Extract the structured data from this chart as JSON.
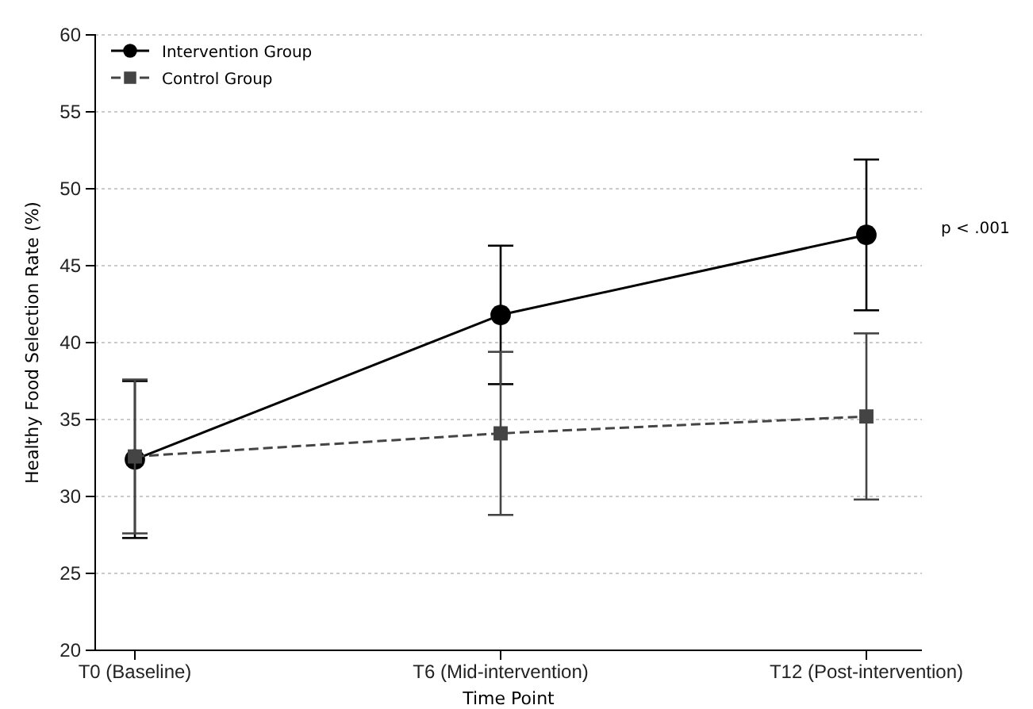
{
  "chart_data": {
    "type": "line",
    "xlabel": "Time Point",
    "ylabel": "Healthy Food Selection Rate (%)",
    "categories": [
      "T0 (Baseline)",
      "T6 (Mid-intervention)",
      "T12 (Post-intervention)"
    ],
    "series": [
      {
        "name": "Intervention Group",
        "color": "#000000",
        "marker": "circle",
        "line_style": "solid",
        "values": [
          32.4,
          41.8,
          47.0
        ],
        "errors": [
          5.1,
          4.5,
          4.9
        ]
      },
      {
        "name": "Control Group",
        "color": "#444444",
        "marker": "square",
        "line_style": "dashed",
        "values": [
          32.6,
          34.1,
          35.2
        ],
        "errors": [
          5.0,
          5.3,
          5.4
        ]
      }
    ],
    "ylim": [
      20,
      60
    ],
    "yticks": [
      20,
      25,
      30,
      35,
      40,
      45,
      50,
      55,
      60
    ],
    "grid": "y",
    "legend": "top left",
    "annotations": [
      "p < .001"
    ]
  }
}
